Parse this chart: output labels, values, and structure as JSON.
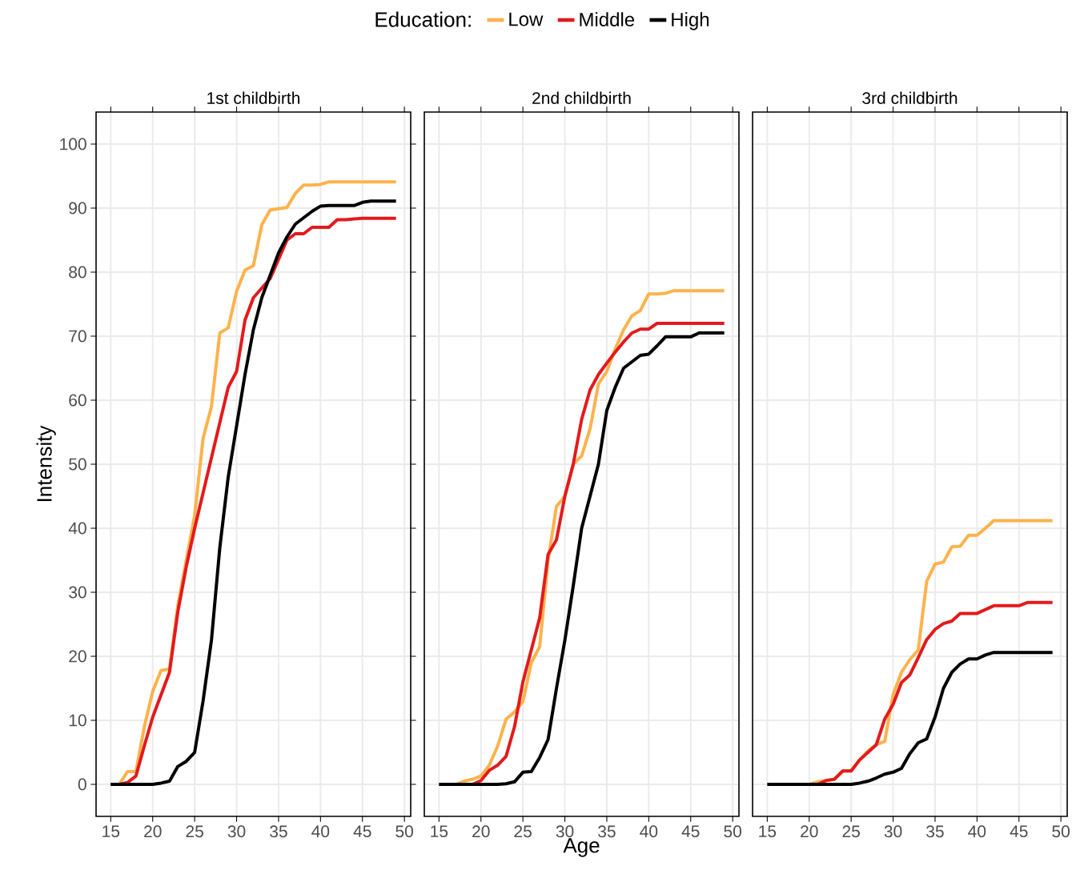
{
  "chart_data": [
    {
      "type": "line",
      "title": "1st childbirth",
      "ylabel": "Intensity",
      "legend_title": "Education:",
      "legend": "top",
      "grid": true,
      "tick_labels": "xy",
      "xlim": [
        13.25,
        50.75
      ],
      "ylim": [
        -5,
        105
      ],
      "xticks": [
        15,
        20,
        25,
        30,
        35,
        40,
        45,
        50
      ],
      "yticks": [
        0,
        10,
        20,
        30,
        40,
        50,
        60,
        70,
        80,
        90,
        100
      ],
      "x": [
        15,
        16,
        17,
        18,
        19,
        20,
        21,
        22,
        23,
        24,
        25,
        26,
        27,
        28,
        29,
        30,
        31,
        32,
        33,
        34,
        35,
        36,
        37,
        38,
        39,
        40,
        41,
        42,
        43,
        44,
        45,
        46,
        47,
        48,
        49
      ],
      "series": [
        {
          "name": "Low",
          "color": "#feb24c",
          "values": [
            0,
            0,
            2,
            2,
            9,
            14.5,
            17.8,
            18,
            28,
            35,
            42,
            54,
            59,
            70.5,
            71.3,
            77,
            80.3,
            81,
            87.4,
            89.7,
            89.9,
            90.1,
            92.3,
            93.6,
            93.6,
            93.7,
            94.1,
            94.1,
            94.1,
            94.1,
            94.1,
            94.1,
            94.1,
            94.1,
            94.1
          ]
        },
        {
          "name": "Middle",
          "color": "#e31a1c",
          "values": [
            0,
            0,
            0.3,
            1.3,
            6,
            10.5,
            14,
            17.5,
            27,
            34,
            40,
            45.5,
            51,
            56.5,
            62,
            64.5,
            72.5,
            76,
            77.5,
            79,
            82,
            85,
            86,
            86,
            87,
            87,
            87,
            88.2,
            88.2,
            88.3,
            88.4,
            88.4,
            88.4,
            88.4,
            88.4
          ]
        },
        {
          "name": "High",
          "color": "#000000",
          "values": [
            0,
            0,
            0,
            0,
            0,
            0,
            0.2,
            0.5,
            2.8,
            3.6,
            5,
            13,
            22.5,
            37,
            48,
            56,
            64,
            71,
            76,
            79.5,
            83,
            85.5,
            87.5,
            88.5,
            89.5,
            90.3,
            90.4,
            90.4,
            90.4,
            90.4,
            90.9,
            91.1,
            91.1,
            91.1,
            91.1
          ]
        }
      ]
    },
    {
      "type": "line",
      "title": "2nd childbirth",
      "xlabel": "Age",
      "grid": true,
      "tick_labels": "x",
      "xlim": [
        13.25,
        50.75
      ],
      "ylim": [
        -5,
        105
      ],
      "xticks": [
        15,
        20,
        25,
        30,
        35,
        40,
        45,
        50
      ],
      "yticks": [
        0,
        10,
        20,
        30,
        40,
        50,
        60,
        70,
        80,
        90,
        100
      ],
      "x": [
        15,
        16,
        17,
        18,
        19,
        20,
        21,
        22,
        23,
        24,
        25,
        26,
        27,
        28,
        29,
        30,
        31,
        32,
        33,
        34,
        35,
        36,
        37,
        38,
        39,
        40,
        41,
        42,
        43,
        44,
        45,
        46,
        47,
        48,
        49
      ],
      "series": [
        {
          "color": "#feb24c",
          "values": [
            0,
            0,
            0,
            0.5,
            0.8,
            1.3,
            3,
            6,
            10.2,
            11.3,
            12.9,
            19,
            21.5,
            35,
            43.4,
            45,
            50,
            51.3,
            55.5,
            62.5,
            64.5,
            68,
            71,
            73.2,
            74,
            76.6,
            76.6,
            76.7,
            77.1,
            77.1,
            77.1,
            77.1,
            77.1,
            77.1,
            77.1
          ]
        },
        {
          "color": "#e31a1c",
          "values": [
            null,
            null,
            null,
            0,
            0,
            0.6,
            2.2,
            3,
            4.4,
            9,
            16,
            21,
            26,
            35.9,
            38.2,
            45,
            50,
            57,
            61.6,
            64,
            65.8,
            67.5,
            69.1,
            70.5,
            71.1,
            71.1,
            72,
            72,
            72,
            72,
            72,
            72,
            72,
            72,
            72
          ]
        },
        {
          "color": "#000000",
          "values": [
            0,
            0,
            0,
            0,
            0,
            0,
            0,
            0,
            0.1,
            0.4,
            1.9,
            2,
            4.2,
            7,
            15,
            22.5,
            31,
            40,
            45,
            50,
            58.4,
            62,
            65,
            66,
            67,
            67.2,
            68.5,
            69.9,
            69.9,
            69.9,
            69.9,
            70.5,
            70.5,
            70.5,
            70.5
          ]
        }
      ]
    },
    {
      "type": "line",
      "title": "3rd childbirth",
      "grid": true,
      "tick_labels": "x",
      "xlim": [
        13.25,
        50.75
      ],
      "ylim": [
        -5,
        105
      ],
      "xticks": [
        15,
        20,
        25,
        30,
        35,
        40,
        45,
        50
      ],
      "yticks": [
        0,
        10,
        20,
        30,
        40,
        50,
        60,
        70,
        80,
        90,
        100
      ],
      "x": [
        15,
        16,
        17,
        18,
        19,
        20,
        21,
        22,
        23,
        24,
        25,
        26,
        27,
        28,
        29,
        30,
        31,
        32,
        33,
        34,
        35,
        36,
        37,
        38,
        39,
        40,
        41,
        42,
        43,
        44,
        45,
        46,
        47,
        48,
        49
      ],
      "series": [
        {
          "color": "#feb24c",
          "values": [
            null,
            null,
            null,
            null,
            0,
            0,
            0.4,
            0.6,
            0.8,
            2.1,
            2.1,
            3.8,
            5.2,
            6.2,
            6.7,
            14,
            17.5,
            19.5,
            21,
            31.7,
            34.4,
            34.7,
            37.1,
            37.2,
            38.9,
            38.9,
            40,
            41.2,
            41.2,
            41.2,
            41.2,
            41.2,
            41.2,
            41.2,
            41.2
          ]
        },
        {
          "color": "#e31a1c",
          "values": [
            null,
            null,
            null,
            null,
            null,
            0,
            0,
            0.6,
            0.8,
            2.1,
            2.1,
            3.8,
            5,
            6.2,
            10.2,
            12.5,
            15.9,
            17.1,
            19.8,
            22.6,
            24.2,
            25.1,
            25.5,
            26.7,
            26.7,
            26.7,
            27.3,
            27.9,
            27.9,
            27.9,
            27.9,
            28.4,
            28.4,
            28.4,
            28.4
          ]
        },
        {
          "color": "#000000",
          "values": [
            0,
            0,
            0,
            0,
            0,
            0,
            0,
            0,
            0,
            0,
            0,
            0.2,
            0.5,
            1,
            1.6,
            1.9,
            2.5,
            4.8,
            6.5,
            7.1,
            10.5,
            15,
            17.5,
            18.8,
            19.6,
            19.6,
            20.2,
            20.6,
            20.6,
            20.6,
            20.6,
            20.6,
            20.6,
            20.6,
            20.6
          ]
        }
      ]
    }
  ]
}
